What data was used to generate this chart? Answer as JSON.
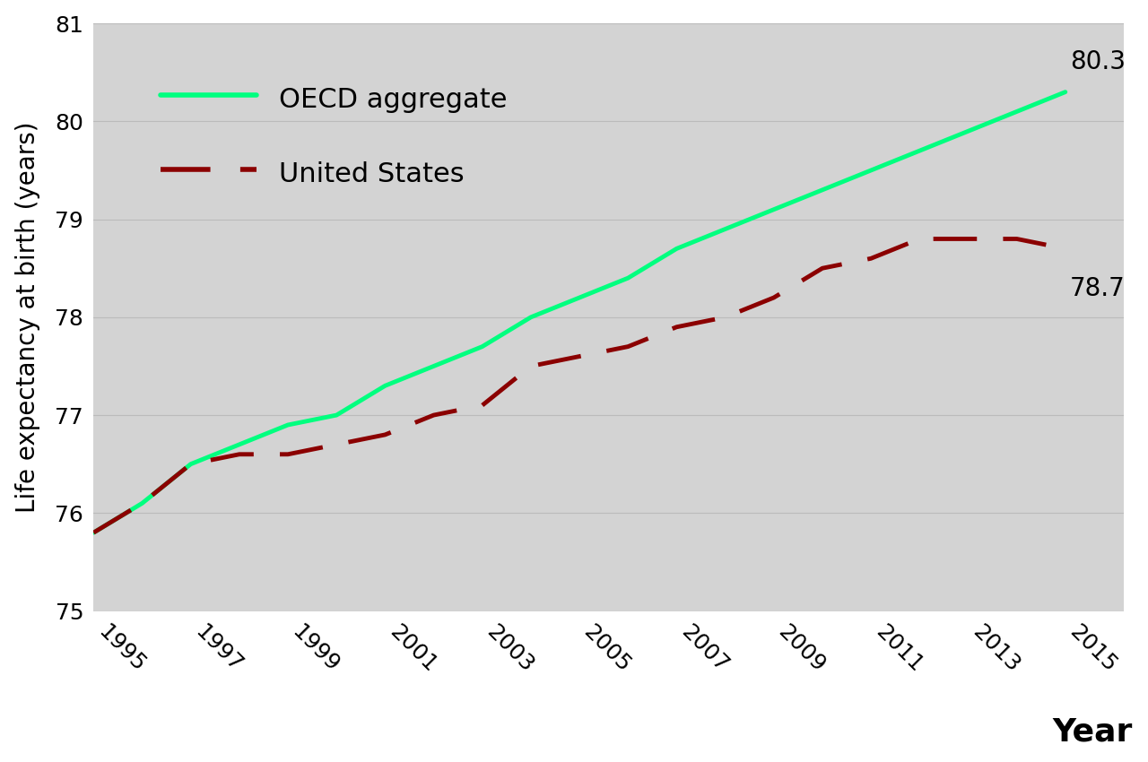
{
  "oecd_years": [
    1995,
    1996,
    1997,
    1998,
    1999,
    2000,
    2001,
    2002,
    2003,
    2004,
    2005,
    2006,
    2007,
    2008,
    2009,
    2010,
    2011,
    2012,
    2013,
    2014,
    2015
  ],
  "oecd_values": [
    75.8,
    76.1,
    76.5,
    76.7,
    76.9,
    77.0,
    77.3,
    77.5,
    77.7,
    78.0,
    78.2,
    78.4,
    78.7,
    78.9,
    79.1,
    79.3,
    79.5,
    79.7,
    79.9,
    80.1,
    80.3
  ],
  "us_years": [
    1995,
    1996,
    1997,
    1998,
    1999,
    2000,
    2001,
    2002,
    2003,
    2004,
    2005,
    2006,
    2007,
    2008,
    2009,
    2010,
    2011,
    2012,
    2013,
    2014,
    2015
  ],
  "us_values": [
    75.8,
    76.1,
    76.5,
    76.6,
    76.6,
    76.7,
    76.8,
    77.0,
    77.1,
    77.5,
    77.6,
    77.7,
    77.9,
    78.0,
    78.2,
    78.5,
    78.6,
    78.8,
    78.8,
    78.8,
    78.7
  ],
  "oecd_color": "#00FF7F",
  "us_color": "#8B0000",
  "oecd_label": "OECD aggregate",
  "us_label": "United States",
  "ylabel": "Life expectancy at birth (years)",
  "xlabel": "Year",
  "ylim": [
    75,
    81
  ],
  "yticks": [
    75,
    76,
    77,
    78,
    79,
    80,
    81
  ],
  "xticks": [
    1995,
    1997,
    1999,
    2001,
    2003,
    2005,
    2007,
    2009,
    2011,
    2013,
    2015
  ],
  "bg_color": "#D3D3D3",
  "fig_bg_color": "#FFFFFF",
  "oecd_end_label": "80.3",
  "us_end_label": "78.7",
  "line_width": 3.5,
  "legend_fontsize": 22,
  "label_fontsize": 20,
  "tick_fontsize": 18,
  "annotation_fontsize": 20,
  "xlabel_fontsize": 26
}
